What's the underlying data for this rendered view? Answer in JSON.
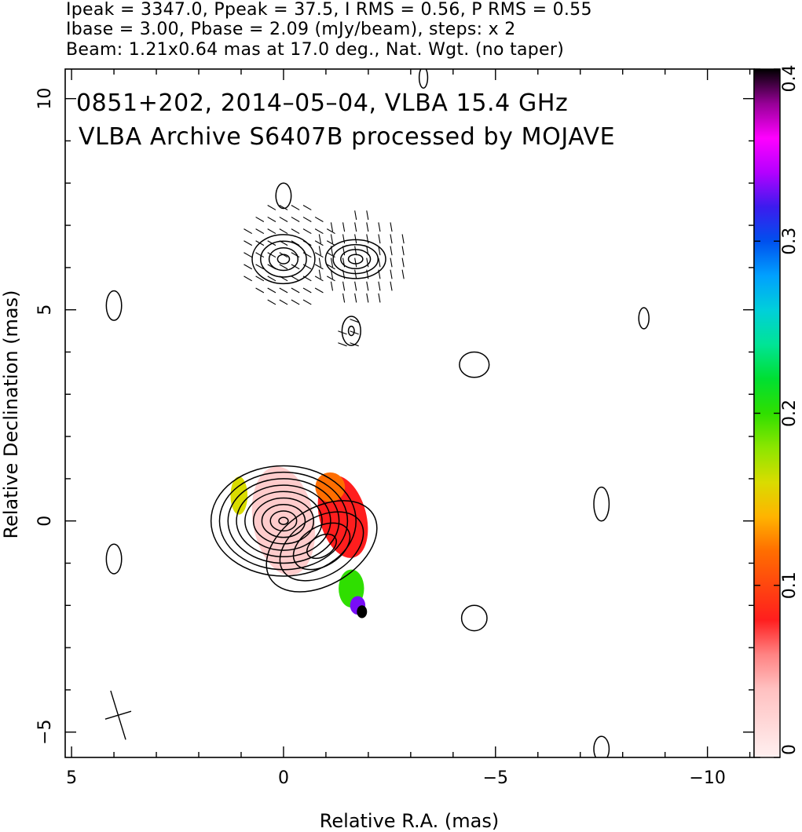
{
  "header": {
    "line1": "Ipeak = 3347.0, Ppeak = 37.5, I RMS = 0.56, P RMS = 0.55",
    "line2": "Ibase = 3.00, Pbase = 2.09 (mJy/beam), steps: x 2",
    "line3": "Beam: 1.21x0.64 mas at 17.0 deg., Nat. Wgt. (no taper)"
  },
  "chart_data": {
    "type": "heatmap",
    "title_line1": "0851+202, 2014–05–04, VLBA 15.4 GHz",
    "title_line2": "VLBA Archive S6407B processed by MOJAVE",
    "xlabel": "Relative R.A. (mas)",
    "ylabel": "Relative Declination (mas)",
    "xlim": [
      5.15,
      -11.1
    ],
    "ylim": [
      -5.6,
      10.7
    ],
    "x_ticks": [
      5,
      0,
      -5,
      -10
    ],
    "x_tick_labels": [
      "5",
      "0",
      "−5",
      "−10"
    ],
    "y_ticks": [
      -5,
      0,
      5,
      10
    ],
    "y_tick_labels": [
      "−5",
      "0",
      "5",
      "10"
    ],
    "colorbar": {
      "range": [
        0,
        0.4
      ],
      "ticks": [
        0,
        0.1,
        0.2,
        0.3,
        0.4
      ],
      "tick_labels": [
        "0",
        "0.1",
        "0.2",
        "0.3",
        "0.4"
      ]
    },
    "contour_base_mjy_per_beam": 3.0,
    "contour_step_factor": 2,
    "beam": {
      "major_mas": 1.21,
      "minor_mas": 0.64,
      "pa_deg": 17.0,
      "center": [
        3.9,
        -4.6
      ]
    },
    "contours": [
      {
        "name": "core-ridge",
        "center": [
          0,
          0
        ],
        "rx": 0.55,
        "ry": 0.42,
        "angle": 0,
        "levels": 9,
        "step": 0.2
      },
      {
        "name": "outer-envelope",
        "center": [
          -0.9,
          -0.6
        ],
        "rx": 1.9,
        "ry": 1.2,
        "angle": -32,
        "levels": 4,
        "step": 0.35
      },
      {
        "name": "upper-lobe-west",
        "center": [
          -1.7,
          6.2
        ],
        "rx": 0.85,
        "ry": 0.55,
        "angle": 0,
        "levels": 4,
        "step": 0.18
      },
      {
        "name": "upper-lobe-east",
        "center": [
          0,
          6.2
        ],
        "rx": 0.7,
        "ry": 0.55,
        "angle": 0,
        "levels": 4,
        "step": 0.2
      },
      {
        "name": "upper-knot",
        "center": [
          -1.6,
          4.5
        ],
        "rx": 0.35,
        "ry": 0.55,
        "angle": 0,
        "levels": 2,
        "step": 0.15
      }
    ],
    "isolated_contours": [
      {
        "center": [
          4.0,
          5.1
        ],
        "rx": 0.18,
        "ry": 0.35
      },
      {
        "center": [
          4.0,
          -0.9
        ],
        "rx": 0.18,
        "ry": 0.35
      },
      {
        "center": [
          0.0,
          7.7
        ],
        "rx": 0.18,
        "ry": 0.3
      },
      {
        "center": [
          -4.5,
          3.7
        ],
        "rx": 0.35,
        "ry": 0.3
      },
      {
        "center": [
          -4.5,
          -2.3
        ],
        "rx": 0.3,
        "ry": 0.3
      },
      {
        "center": [
          -7.5,
          0.4
        ],
        "rx": 0.18,
        "ry": 0.4
      },
      {
        "center": [
          -8.5,
          4.8
        ],
        "rx": 0.12,
        "ry": 0.25
      },
      {
        "center": [
          -7.5,
          -5.4
        ],
        "rx": 0.18,
        "ry": 0.3
      },
      {
        "center": [
          -3.3,
          10.5
        ],
        "rx": 0.1,
        "ry": 0.25
      }
    ],
    "polarization_patches": [
      {
        "center": [
          0,
          0
        ],
        "rx": 0.72,
        "ry": 1.3,
        "angle": -10,
        "fractional_pol": 0.03
      },
      {
        "center": [
          -1.4,
          0.1
        ],
        "rx": 0.55,
        "ry": 1.0,
        "angle": -15,
        "fractional_pol": 0.08
      },
      {
        "center": [
          -1.1,
          0.8
        ],
        "rx": 0.35,
        "ry": 0.35,
        "angle": 0,
        "fractional_pol": 0.12
      },
      {
        "center": [
          1.05,
          0.6
        ],
        "rx": 0.2,
        "ry": 0.45,
        "angle": 0,
        "fractional_pol": 0.16
      },
      {
        "center": [
          -1.6,
          -1.6
        ],
        "rx": 0.3,
        "ry": 0.45,
        "angle": 0,
        "fractional_pol": 0.2
      },
      {
        "center": [
          -1.75,
          -2.0
        ],
        "rx": 0.18,
        "ry": 0.22,
        "angle": 0,
        "fractional_pol": 0.33
      },
      {
        "center": [
          -1.85,
          -2.15
        ],
        "rx": 0.12,
        "ry": 0.15,
        "angle": 0,
        "fractional_pol": 0.4
      }
    ],
    "evpa_regions": [
      {
        "center": [
          -0.1,
          6.3
        ],
        "rx": 1.3,
        "ry": 1.4,
        "angle_deg": 60
      },
      {
        "center": [
          -1.8,
          6.2
        ],
        "rx": 1.3,
        "ry": 1.2,
        "angle_deg": 10
      },
      {
        "center": [
          -1.6,
          4.4
        ],
        "rx": 0.35,
        "ry": 0.5,
        "angle_deg": 70
      }
    ]
  }
}
